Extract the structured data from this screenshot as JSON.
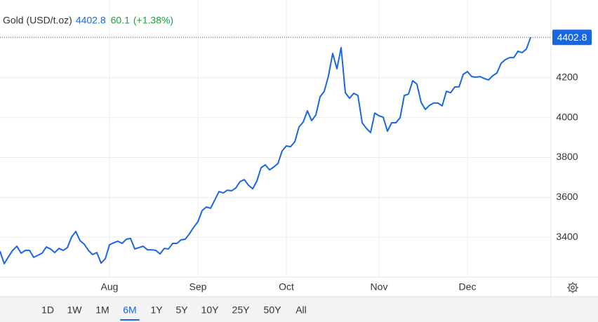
{
  "chart_data": {
    "type": "line",
    "series": [
      {
        "name": "Gold (USD/t.oz)",
        "color": "#1a66e0",
        "values": [
          3330,
          3267,
          3302,
          3334,
          3355,
          3320,
          3334,
          3334,
          3299,
          3309,
          3320,
          3351,
          3341,
          3323,
          3344,
          3334,
          3348,
          3401,
          3429,
          3383,
          3365,
          3334,
          3313,
          3323,
          3270,
          3292,
          3362,
          3372,
          3380,
          3369,
          3390,
          3394,
          3341,
          3348,
          3355,
          3337,
          3337,
          3334,
          3316,
          3344,
          3341,
          3369,
          3369,
          3387,
          3390,
          3418,
          3450,
          3478,
          3534,
          3552,
          3545,
          3587,
          3629,
          3622,
          3636,
          3633,
          3647,
          3679,
          3689,
          3661,
          3643,
          3682,
          3749,
          3763,
          3738,
          3752,
          3770,
          3833,
          3858,
          3854,
          3879,
          3953,
          3978,
          4034,
          3985,
          4013,
          4104,
          4132,
          4210,
          4322,
          4245,
          4351,
          4125,
          4097,
          4122,
          4111,
          3974,
          3946,
          3925,
          4023,
          4009,
          4002,
          3932,
          3974,
          3974,
          3999,
          4111,
          4118,
          4185,
          4168,
          4076,
          4041,
          4062,
          4073,
          4073,
          4059,
          4132,
          4125,
          4154,
          4154,
          4217,
          4231,
          4206,
          4203,
          4206,
          4196,
          4189,
          4210,
          4224,
          4273,
          4291,
          4301,
          4301,
          4333,
          4326,
          4344,
          4402.8
        ]
      }
    ],
    "categories": [
      null,
      null,
      null,
      null,
      null,
      null,
      null,
      null,
      null,
      null,
      null,
      null,
      null,
      null,
      null,
      null,
      null,
      null,
      null,
      null,
      null,
      null,
      null,
      null,
      null,
      null,
      "Aug",
      null,
      null,
      null,
      null,
      null,
      null,
      null,
      null,
      null,
      null,
      null,
      null,
      null,
      null,
      null,
      null,
      null,
      null,
      null,
      null,
      "Sep",
      null,
      null,
      null,
      null,
      null,
      null,
      null,
      null,
      null,
      null,
      null,
      null,
      null,
      null,
      null,
      null,
      null,
      null,
      null,
      null,
      "Oct",
      null,
      null,
      null,
      null,
      null,
      null,
      null,
      null,
      null,
      null,
      null,
      null,
      null,
      null,
      null,
      null,
      null,
      null,
      null,
      null,
      null,
      "Nov",
      null,
      null,
      null,
      null,
      null,
      null,
      null,
      null,
      null,
      null,
      null,
      null,
      null,
      null,
      null,
      null,
      null,
      null,
      null,
      null,
      "Dec",
      null,
      null,
      null,
      null,
      null,
      null,
      null,
      null,
      null,
      null,
      null,
      null,
      null,
      null,
      null
    ],
    "ylim": [
      3200,
      4590
    ],
    "yticks": [
      3400,
      3600,
      3800,
      4000,
      4200
    ],
    "grid": true,
    "last_price": 4402.8,
    "change": 60.1,
    "change_label": "(+1.38%)",
    "change_color": "#1e9e3e"
  },
  "range_buttons": [
    "1D",
    "1W",
    "1M",
    "6M",
    "1Y",
    "5Y",
    "10Y",
    "25Y",
    "50Y",
    "All"
  ],
  "selected_range": "6M"
}
